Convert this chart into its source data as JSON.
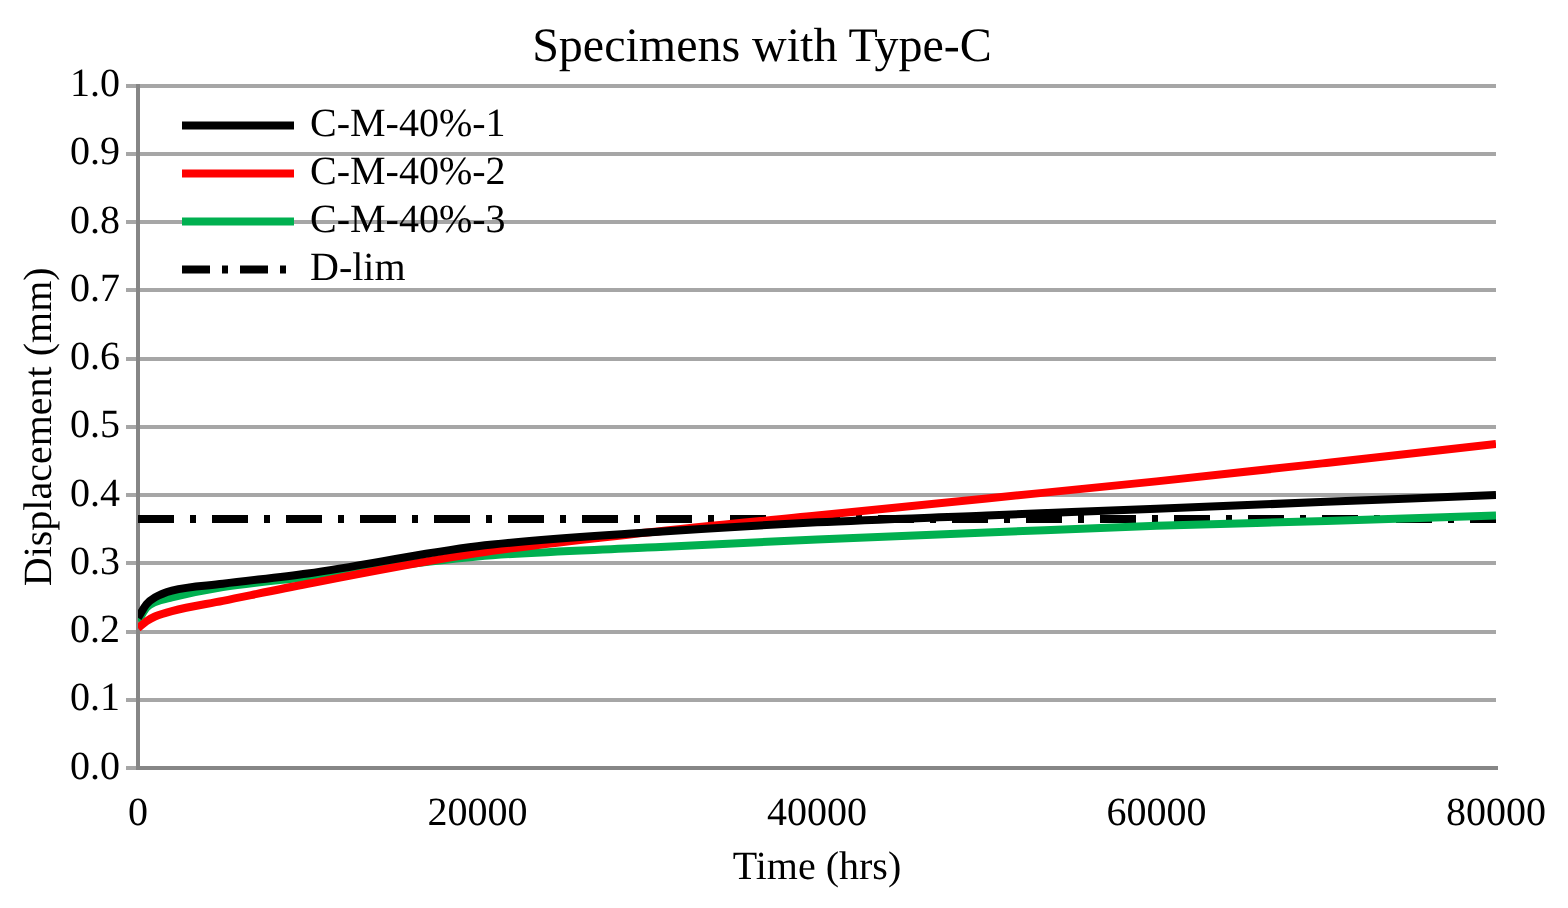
{
  "chart_data": {
    "type": "line",
    "title": "Specimens with Type-C",
    "xlabel": "Time (hrs)",
    "ylabel": "Displacement (mm)",
    "xlim": [
      0,
      80000
    ],
    "xticks": [
      0,
      20000,
      40000,
      60000,
      80000
    ],
    "ylim": [
      0,
      1
    ],
    "yticks": [
      {
        "value": 0,
        "label": "0.0"
      },
      {
        "value": 0.1,
        "label": "0.1"
      },
      {
        "value": 0.2,
        "label": "0.2"
      },
      {
        "value": 0.3,
        "label": "0.3"
      },
      {
        "value": 0.4,
        "label": "0.4"
      },
      {
        "value": 0.5,
        "label": "0.5"
      },
      {
        "value": 0.6,
        "label": "0.6"
      },
      {
        "value": 0.7,
        "label": "0.7"
      },
      {
        "value": 0.8,
        "label": "0.8"
      },
      {
        "value": 0.9,
        "label": "0.9"
      },
      {
        "value": 1,
        "label": "1.0"
      }
    ],
    "grid": "y",
    "legend": "top left",
    "marker": "none",
    "series": [
      {
        "name": "C-M-40%-1",
        "color": "#000000",
        "x": [
          0,
          500,
          1000,
          2000,
          5000,
          10000,
          20000,
          30000,
          40000,
          50000,
          60000,
          70000,
          80000
        ],
        "values": [
          0.22,
          0.24,
          0.25,
          0.26,
          0.27,
          0.285,
          0.325,
          0.345,
          0.36,
          0.37,
          0.38,
          0.39,
          0.4
        ]
      },
      {
        "name": "C-M-40%-2",
        "color": "#ff0000",
        "x": [
          0,
          500,
          1000,
          2000,
          5000,
          10000,
          20000,
          30000,
          40000,
          50000,
          60000,
          70000,
          80000
        ],
        "values": [
          0.205,
          0.215,
          0.222,
          0.23,
          0.245,
          0.27,
          0.315,
          0.345,
          0.37,
          0.395,
          0.42,
          0.447,
          0.475
        ]
      },
      {
        "name": "C-M-40%-3",
        "color": "#00b050",
        "x": [
          0,
          500,
          1000,
          2000,
          5000,
          10000,
          20000,
          30000,
          40000,
          50000,
          60000,
          70000,
          80000
        ],
        "values": [
          0.215,
          0.235,
          0.243,
          0.25,
          0.265,
          0.28,
          0.31,
          0.323,
          0.335,
          0.345,
          0.355,
          0.362,
          0.37
        ]
      },
      {
        "name": "D-lim",
        "color": "#000000",
        "line_style": "dashed",
        "x": [
          0,
          80000
        ],
        "values": [
          0.365,
          0.365
        ]
      }
    ]
  }
}
